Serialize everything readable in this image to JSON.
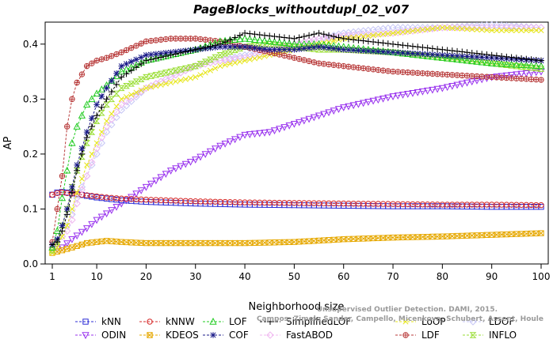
{
  "chart_data": {
    "type": "line",
    "title": "PageBlocks_withoutdupl_02_v07",
    "xlabel": "Neighborhood size",
    "ylabel": "AP",
    "xlim": [
      1,
      100
    ],
    "ylim": [
      0,
      0.44
    ],
    "x_ticks": [
      1,
      10,
      20,
      30,
      40,
      50,
      60,
      70,
      80,
      90,
      100
    ],
    "y_ticks": [
      0.0,
      0.1,
      0.2,
      0.3,
      0.4
    ],
    "y_tick_labels": [
      "0.0",
      "0.1",
      "0.2",
      "0.3",
      "0.4"
    ],
    "grid": false,
    "legend_position": "bottom",
    "watermark_lines": [
      "Unsupervised Outlier Detection. DAMI, 2015.",
      "Campos, Zimek, Sander, Campello, Micenkova, Schubert, Assent, Houle"
    ],
    "series": [
      {
        "name": "kNN",
        "color": "#2b2bd6",
        "marker": "square",
        "x": [
          1,
          2,
          3,
          4,
          5,
          6,
          8,
          10,
          12,
          15,
          20,
          30,
          40,
          50,
          60,
          70,
          80,
          90,
          100
        ],
        "y": [
          0.126,
          0.13,
          0.131,
          0.13,
          0.129,
          0.127,
          0.124,
          0.121,
          0.119,
          0.116,
          0.113,
          0.11,
          0.108,
          0.107,
          0.106,
          0.105,
          0.105,
          0.104,
          0.104
        ]
      },
      {
        "name": "kNNW",
        "color": "#d62b2b",
        "marker": "circle",
        "x": [
          1,
          2,
          3,
          4,
          5,
          6,
          8,
          10,
          12,
          15,
          20,
          30,
          40,
          50,
          60,
          70,
          80,
          90,
          100
        ],
        "y": [
          0.126,
          0.129,
          0.13,
          0.129,
          0.128,
          0.127,
          0.125,
          0.123,
          0.121,
          0.119,
          0.117,
          0.114,
          0.112,
          0.111,
          0.11,
          0.109,
          0.108,
          0.108,
          0.107
        ]
      },
      {
        "name": "LOF",
        "color": "#22cc22",
        "marker": "triangle-up",
        "x": [
          1,
          2,
          3,
          4,
          5,
          6,
          8,
          10,
          12,
          15,
          20,
          25,
          30,
          35,
          40,
          45,
          50,
          55,
          60,
          70,
          80,
          90,
          100
        ],
        "y": [
          0.03,
          0.06,
          0.12,
          0.17,
          0.22,
          0.25,
          0.29,
          0.31,
          0.325,
          0.35,
          0.37,
          0.38,
          0.39,
          0.405,
          0.41,
          0.405,
          0.4,
          0.4,
          0.395,
          0.385,
          0.375,
          0.365,
          0.36
        ]
      },
      {
        "name": "SimplifiedLOF",
        "color": "#000000",
        "marker": "plus",
        "x": [
          1,
          2,
          3,
          4,
          5,
          6,
          8,
          10,
          12,
          15,
          20,
          25,
          30,
          35,
          40,
          45,
          50,
          55,
          60,
          70,
          80,
          90,
          100
        ],
        "y": [
          0.035,
          0.04,
          0.06,
          0.09,
          0.13,
          0.17,
          0.23,
          0.27,
          0.3,
          0.34,
          0.37,
          0.38,
          0.39,
          0.4,
          0.42,
          0.415,
          0.41,
          0.42,
          0.41,
          0.4,
          0.39,
          0.38,
          0.37
        ]
      },
      {
        "name": "LoOP",
        "color": "#e6e619",
        "marker": "x",
        "x": [
          1,
          2,
          3,
          4,
          5,
          6,
          8,
          10,
          12,
          15,
          20,
          25,
          30,
          35,
          40,
          45,
          50,
          55,
          60,
          70,
          80,
          90,
          100
        ],
        "y": [
          0.02,
          0.03,
          0.05,
          0.07,
          0.1,
          0.13,
          0.18,
          0.22,
          0.26,
          0.3,
          0.32,
          0.33,
          0.34,
          0.36,
          0.37,
          0.38,
          0.39,
          0.4,
          0.41,
          0.42,
          0.43,
          0.425,
          0.425
        ]
      },
      {
        "name": "LDOF",
        "color": "#c6c6f6",
        "marker": "diamond",
        "x": [
          1,
          2,
          3,
          4,
          5,
          6,
          8,
          10,
          12,
          15,
          20,
          25,
          30,
          35,
          40,
          45,
          50,
          55,
          60,
          70,
          80,
          90,
          100
        ],
        "y": [
          0.03,
          0.04,
          0.05,
          0.07,
          0.09,
          0.12,
          0.16,
          0.2,
          0.24,
          0.28,
          0.32,
          0.34,
          0.36,
          0.37,
          0.38,
          0.39,
          0.4,
          0.41,
          0.42,
          0.43,
          0.43,
          0.435,
          0.43
        ]
      },
      {
        "name": "ODIN",
        "color": "#9933ee",
        "marker": "triangle-down",
        "x": [
          1,
          3,
          5,
          8,
          10,
          15,
          20,
          25,
          30,
          35,
          40,
          45,
          50,
          55,
          60,
          70,
          80,
          90,
          100
        ],
        "y": [
          0.025,
          0.03,
          0.045,
          0.065,
          0.08,
          0.11,
          0.14,
          0.17,
          0.19,
          0.215,
          0.235,
          0.24,
          0.255,
          0.27,
          0.285,
          0.305,
          0.32,
          0.34,
          0.35
        ]
      },
      {
        "name": "KDEOS",
        "color": "#e6a800",
        "marker": "square-x",
        "x": [
          1,
          3,
          5,
          8,
          10,
          12,
          15,
          20,
          30,
          40,
          50,
          60,
          70,
          80,
          90,
          100
        ],
        "y": [
          0.02,
          0.025,
          0.03,
          0.038,
          0.04,
          0.042,
          0.04,
          0.038,
          0.038,
          0.038,
          0.04,
          0.045,
          0.048,
          0.05,
          0.053,
          0.056
        ]
      },
      {
        "name": "COF",
        "color": "#1a1a88",
        "marker": "asterisk",
        "x": [
          1,
          2,
          3,
          4,
          5,
          6,
          8,
          10,
          12,
          15,
          20,
          25,
          30,
          35,
          40,
          45,
          50,
          55,
          60,
          70,
          80,
          90,
          100
        ],
        "y": [
          0.035,
          0.045,
          0.07,
          0.1,
          0.14,
          0.18,
          0.24,
          0.29,
          0.32,
          0.36,
          0.38,
          0.385,
          0.39,
          0.395,
          0.395,
          0.39,
          0.39,
          0.395,
          0.39,
          0.385,
          0.38,
          0.375,
          0.37
        ]
      },
      {
        "name": "FastABOD",
        "color": "#f0b8f0",
        "marker": "diamond",
        "x": [
          1,
          2,
          3,
          4,
          5,
          6,
          8,
          10,
          12,
          15,
          20,
          25,
          30,
          35,
          40,
          45,
          50,
          55,
          60,
          70,
          80,
          90,
          100
        ],
        "y": [
          0.03,
          0.04,
          0.05,
          0.06,
          0.08,
          0.11,
          0.16,
          0.21,
          0.25,
          0.29,
          0.32,
          0.34,
          0.36,
          0.37,
          0.375,
          0.385,
          0.4,
          0.41,
          0.415,
          0.42,
          0.43,
          0.43,
          0.43
        ]
      },
      {
        "name": "LDF",
        "color": "#b83a3a",
        "marker": "circle-plus",
        "x": [
          1,
          2,
          3,
          4,
          5,
          6,
          8,
          10,
          12,
          15,
          20,
          25,
          30,
          35,
          40,
          45,
          50,
          55,
          60,
          70,
          80,
          90,
          100
        ],
        "y": [
          0.04,
          0.1,
          0.16,
          0.25,
          0.3,
          0.33,
          0.36,
          0.37,
          0.375,
          0.385,
          0.405,
          0.41,
          0.41,
          0.405,
          0.395,
          0.385,
          0.375,
          0.365,
          0.36,
          0.35,
          0.345,
          0.34,
          0.335
        ]
      },
      {
        "name": "INFLO",
        "color": "#99dd33",
        "marker": "hourglass",
        "x": [
          1,
          2,
          3,
          4,
          5,
          6,
          8,
          10,
          12,
          15,
          20,
          25,
          30,
          35,
          40,
          45,
          50,
          55,
          60,
          70,
          80,
          90,
          100
        ],
        "y": [
          0.025,
          0.04,
          0.07,
          0.1,
          0.14,
          0.17,
          0.22,
          0.26,
          0.29,
          0.32,
          0.34,
          0.35,
          0.36,
          0.38,
          0.395,
          0.4,
          0.395,
          0.39,
          0.39,
          0.385,
          0.375,
          0.365,
          0.355
        ]
      }
    ]
  }
}
